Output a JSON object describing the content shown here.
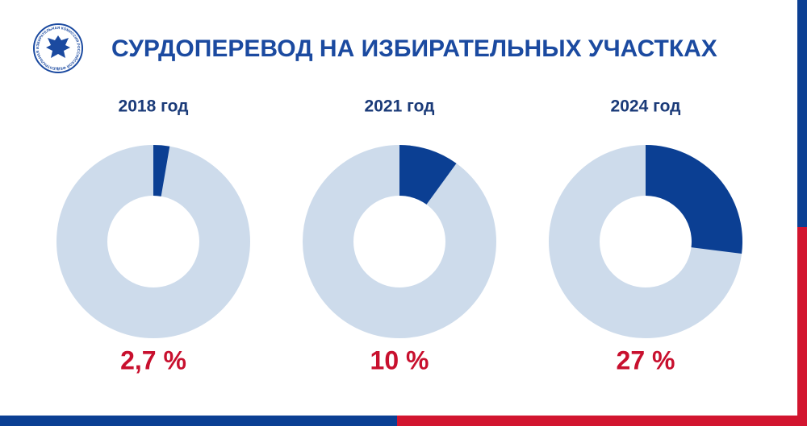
{
  "title": "СУРДОПЕРЕВОД НА ИЗБИРАТЕЛЬНЫХ УЧАСТКАХ",
  "logo_text": "ЦЕНТРАЛЬНАЯ ИЗБИРАТЕЛЬНАЯ КОМИССИЯ РОССИЙСКОЙ ФЕДЕРАЦИИ",
  "chart_data": [
    {
      "type": "pie",
      "title": "2018 год",
      "values": [
        2.7
      ],
      "value_labels": [
        "2,7 %"
      ],
      "color": "#0b3f93"
    },
    {
      "type": "pie",
      "title": "2021 год",
      "values": [
        10
      ],
      "value_labels": [
        "10 %"
      ],
      "color": "#0b3f93"
    },
    {
      "type": "pie",
      "title": "2024 год",
      "values": [
        27
      ],
      "value_labels": [
        "27 %"
      ],
      "color": "#0b3f93"
    }
  ]
}
